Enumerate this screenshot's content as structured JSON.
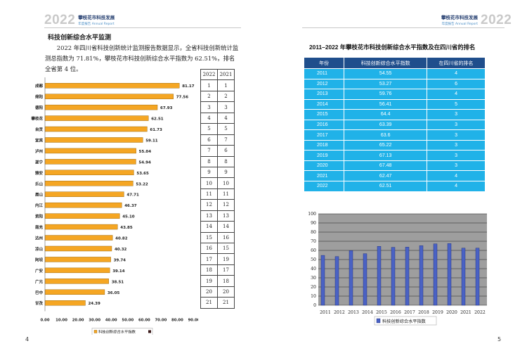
{
  "header": {
    "left": {
      "year": "2022",
      "title": "攀枝花市科技发展",
      "subtitle": "年度报告 Annual Report"
    },
    "right": {
      "year": "2022",
      "title": "攀枝花市科技发展",
      "subtitle": "年度报告 Annual Report"
    }
  },
  "left_page": {
    "section_title": "科技创新综合水平监测",
    "paragraph": "2022 年四川省科技创新统计监测报告数据显示，全省科技创新统计监测总指数为 71.81%，攀枝花市科技创新综合水平指数为 62.51%，排名全省第 4 位。",
    "page_number": "4"
  },
  "rank_table": {
    "headers": [
      "2022",
      "2021"
    ],
    "rows": [
      [
        "1",
        "1"
      ],
      [
        "2",
        "2"
      ],
      [
        "3",
        "3"
      ],
      [
        "4",
        "4"
      ],
      [
        "5",
        "5"
      ],
      [
        "6",
        "7"
      ],
      [
        "7",
        "6"
      ],
      [
        "8",
        "8"
      ],
      [
        "9",
        "9"
      ],
      [
        "10",
        "10"
      ],
      [
        "11",
        "11"
      ],
      [
        "12",
        "12"
      ],
      [
        "13",
        "13"
      ],
      [
        "14",
        "14"
      ],
      [
        "15",
        "16"
      ],
      [
        "16",
        "15"
      ],
      [
        "17",
        "19"
      ],
      [
        "18",
        "17"
      ],
      [
        "19",
        "18"
      ],
      [
        "20",
        "20"
      ],
      [
        "21",
        "21"
      ]
    ]
  },
  "right_page": {
    "table_title": "2011–2022 年攀枝花市科技创新综合水平指数及在四川省的排名",
    "columns": [
      "年份",
      "科技创新综合水平指数",
      "在四川省的排名"
    ],
    "rows": [
      [
        "2011",
        "54.55",
        "4"
      ],
      [
        "2012",
        "53.27",
        "6"
      ],
      [
        "2013",
        "59.76",
        "4"
      ],
      [
        "2014",
        "56.41",
        "5"
      ],
      [
        "2015",
        "64.4",
        "3"
      ],
      [
        "2016",
        "63.39",
        "3"
      ],
      [
        "2017",
        "63.6",
        "3"
      ],
      [
        "2018",
        "65.22",
        "3"
      ],
      [
        "2019",
        "67.13",
        "3"
      ],
      [
        "2020",
        "67.48",
        "3"
      ],
      [
        "2021",
        "62.47",
        "4"
      ],
      [
        "2022",
        "62.51",
        "4"
      ]
    ],
    "page_number": "5"
  },
  "colors": {
    "bar_orange": "#f5a623",
    "bar_border": "#8a5a00",
    "table_header": "#1f4e8c",
    "table_cell": "#20b2e8",
    "column_fill": "#4a62c4",
    "plot_bg": "#9e9e9e"
  },
  "chart_data": [
    {
      "type": "bar",
      "orientation": "horizontal",
      "categories": [
        "成都",
        "绵阳",
        "德阳",
        "攀枝花",
        "自贡",
        "宜宾",
        "泸州",
        "遂宁",
        "雅安",
        "乐山",
        "眉山",
        "内江",
        "资阳",
        "南充",
        "达州",
        "凉山",
        "阿坝",
        "广安",
        "广元",
        "巴中",
        "甘孜"
      ],
      "values": [
        81.17,
        77.56,
        67.93,
        62.51,
        61.73,
        59.11,
        55.04,
        54.94,
        53.65,
        53.22,
        47.71,
        46.37,
        45.1,
        43.85,
        40.82,
        40.32,
        39.74,
        39.14,
        38.51,
        36.05,
        24.39
      ],
      "value_labels": [
        "81.17",
        "77.56",
        "67.93",
        "62.51",
        "61.73",
        "59.11",
        "55.04",
        "54.94",
        "53.65",
        "53.22",
        "47.71",
        "46.37",
        "45.10",
        "43.85",
        "40.82",
        "40.32",
        "39.74",
        "39.14",
        "38.51",
        "36.05",
        "24.39"
      ],
      "xlim": [
        0,
        90
      ],
      "xticks": [
        "0.00",
        "10.00",
        "20.00",
        "30.00",
        "40.00",
        "50.00",
        "60.00",
        "70.00",
        "80.00",
        "90.00"
      ],
      "legend": "科技创新综合水平指数",
      "legend_position": "bottom"
    },
    {
      "type": "bar",
      "orientation": "vertical",
      "categories": [
        "2011",
        "2012",
        "2013",
        "2014",
        "2015",
        "2016",
        "2017",
        "2018",
        "2019",
        "2020",
        "2021",
        "2022"
      ],
      "values": [
        54.55,
        53.27,
        59.76,
        56.41,
        64.4,
        63.39,
        63.6,
        65.22,
        67.13,
        67.48,
        62.47,
        62.51
      ],
      "ylim": [
        0,
        100
      ],
      "yticks": [
        "0",
        "10",
        "20",
        "30",
        "40",
        "50",
        "60",
        "70",
        "80",
        "90",
        "100"
      ],
      "grid": true,
      "legend": "科技创新综合水平指数",
      "legend_position": "bottom"
    }
  ]
}
